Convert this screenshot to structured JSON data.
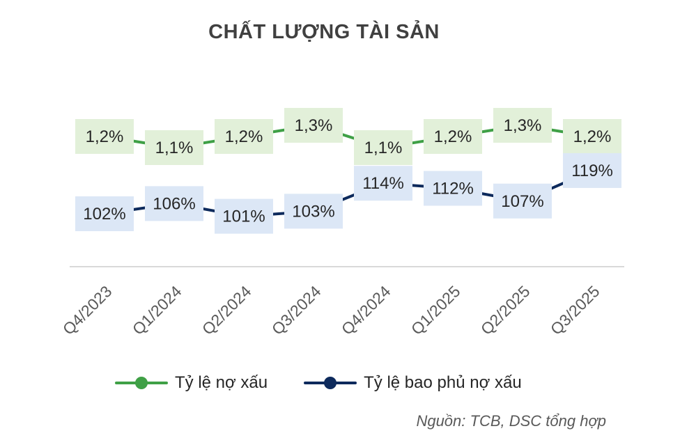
{
  "chart_data": {
    "type": "line",
    "title": "CHẤT LƯỢNG TÀI SẢN",
    "categories": [
      "Q4/2023",
      "Q1/2024",
      "Q2/2024",
      "Q3/2024",
      "Q4/2024",
      "Q1/2025",
      "Q2/2025",
      "Q3/2025"
    ],
    "series": [
      {
        "name": "Tỷ lệ nợ xấu",
        "color": "#3fa046",
        "label_bg": "#e2f0d9",
        "values": [
          1.2,
          1.1,
          1.2,
          1.3,
          1.1,
          1.2,
          1.3,
          1.2
        ],
        "labels": [
          "1,2%",
          "1,1%",
          "1,2%",
          "1,3%",
          "1,1%",
          "1,2%",
          "1,3%",
          "1,2%"
        ]
      },
      {
        "name": "Tỷ lệ bao phủ nợ xấu",
        "color": "#0d2a5c",
        "label_bg": "#dce7f6",
        "values": [
          102,
          106,
          101,
          103,
          114,
          112,
          107,
          119
        ],
        "labels": [
          "102%",
          "106%",
          "101%",
          "103%",
          "114%",
          "112%",
          "107%",
          "119%"
        ]
      }
    ],
    "legend_position": "bottom",
    "grid": false
  },
  "source_note": "Nguồn: TCB, DSC tổng hợp"
}
